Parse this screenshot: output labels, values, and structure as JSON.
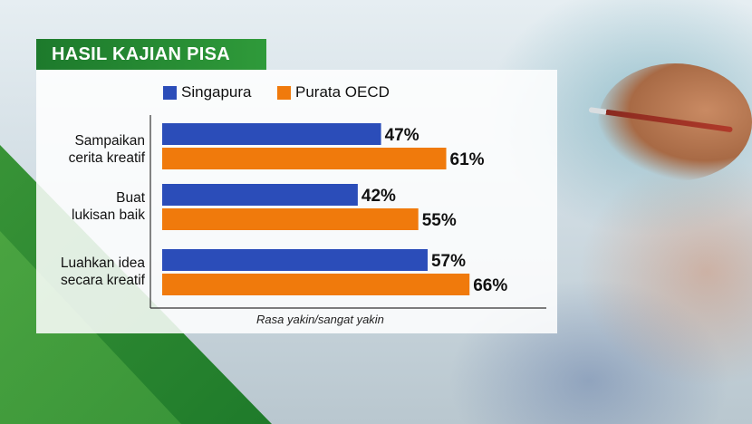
{
  "header": {
    "title": "HASIL KAJIAN PISA"
  },
  "colors": {
    "singapura": "#2b4db9",
    "oecd": "#f07a0c",
    "title_bg": "#2a8e37"
  },
  "chart_data": {
    "type": "bar",
    "orientation": "horizontal",
    "title": "HASIL KAJIAN PISA",
    "categories": [
      {
        "line1": "Sampaikan",
        "line2": "cerita kreatif"
      },
      {
        "line1": "Buat",
        "line2": "lukisan baik"
      },
      {
        "line1": "Luahkan idea",
        "line2": "secara kreatif"
      }
    ],
    "series": [
      {
        "name": "Singapura",
        "values": [
          47,
          42,
          57
        ],
        "labels": [
          "47%",
          "42%",
          "57%"
        ]
      },
      {
        "name": "Purata OECD",
        "values": [
          61,
          55,
          66
        ],
        "labels": [
          "61%",
          "55%",
          "66%"
        ]
      }
    ],
    "xlabel": "Rasa yakin/sangat yakin",
    "legend": "top"
  }
}
